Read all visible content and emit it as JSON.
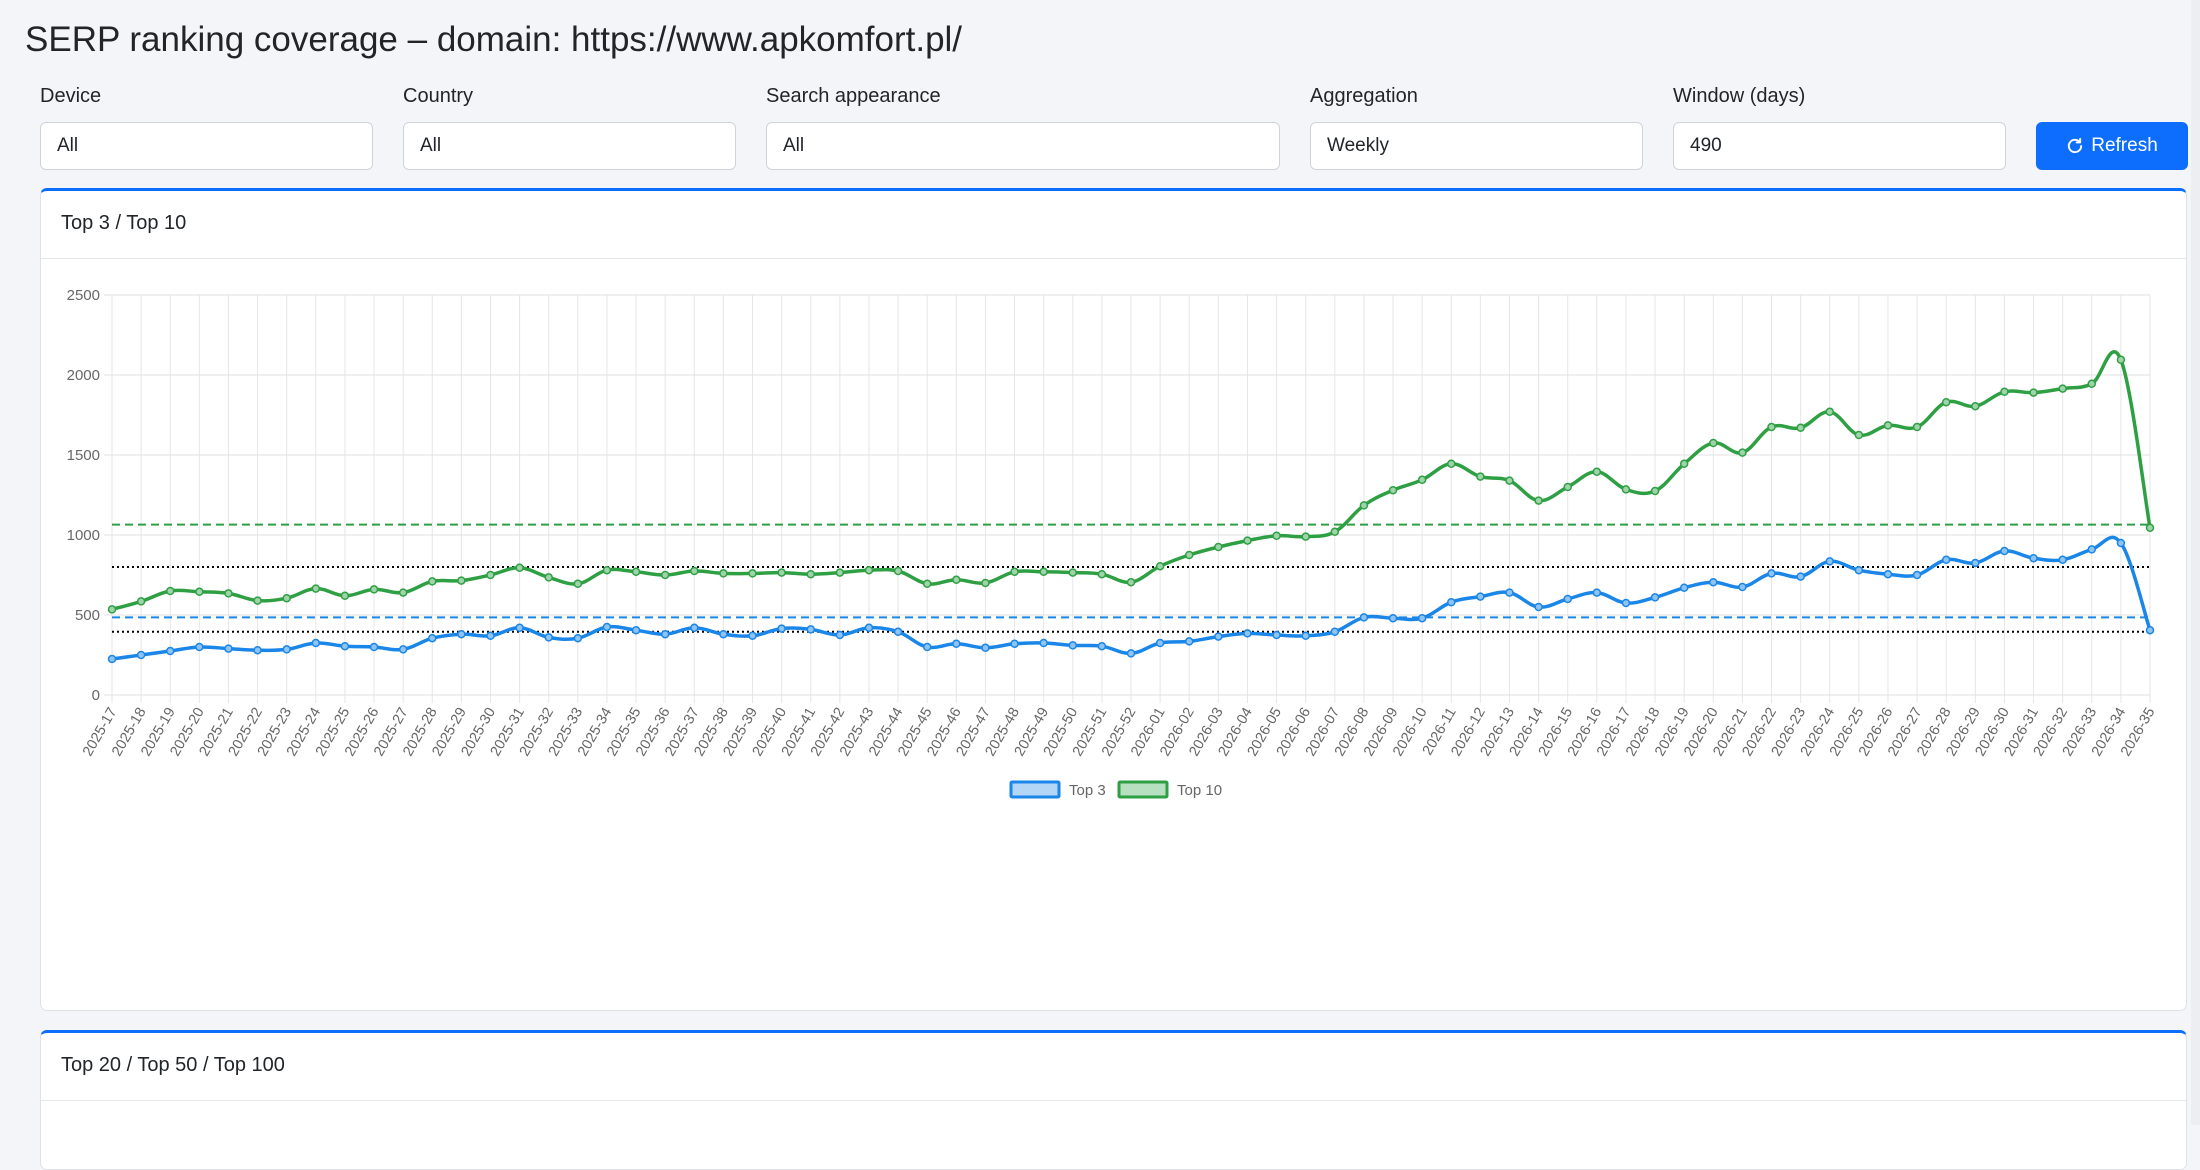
{
  "page": {
    "title": "SERP ranking coverage – domain: https://www.apkomfort.pl/"
  },
  "filters": {
    "device": {
      "label": "Device",
      "value": "All"
    },
    "country": {
      "label": "Country",
      "value": "All"
    },
    "search_appearance": {
      "label": "Search appearance",
      "value": "All"
    },
    "aggregation": {
      "label": "Aggregation",
      "value": "Weekly"
    },
    "window": {
      "label": "Window (days)",
      "value": "490"
    },
    "refresh_label": "Refresh"
  },
  "cards": {
    "top3_top10": {
      "title": "Top 3 / Top 10"
    },
    "top20_50_100": {
      "title": "Top 20 / Top 50 / Top 100"
    }
  },
  "colors": {
    "accent": "#0d6efd",
    "top3": "#1a86e8",
    "top10": "#2ea043"
  },
  "chart_data": {
    "type": "line",
    "title": "",
    "xlabel": "",
    "ylabel": "",
    "ylim": [
      0,
      2500
    ],
    "yticks": [
      0,
      500,
      1000,
      1500,
      2000,
      2500
    ],
    "grid": true,
    "legend_position": "bottom",
    "categories": [
      "2025-17",
      "2025-18",
      "2025-19",
      "2025-20",
      "2025-21",
      "2025-22",
      "2025-23",
      "2025-24",
      "2025-25",
      "2025-26",
      "2025-27",
      "2025-28",
      "2025-29",
      "2025-30",
      "2025-31",
      "2025-32",
      "2025-33",
      "2025-34",
      "2025-35",
      "2025-36",
      "2025-37",
      "2025-38",
      "2025-39",
      "2025-40",
      "2025-41",
      "2025-42",
      "2025-43",
      "2025-44",
      "2025-45",
      "2025-46",
      "2025-47",
      "2025-48",
      "2025-49",
      "2025-50",
      "2025-51",
      "2025-52",
      "2026-01",
      "2026-02",
      "2026-03",
      "2026-04",
      "2026-05",
      "2026-06",
      "2026-07",
      "2026-08",
      "2026-09",
      "2026-10",
      "2026-11",
      "2026-12",
      "2026-13",
      "2026-14",
      "2026-15",
      "2026-16",
      "2026-17",
      "2026-18",
      "2026-19",
      "2026-20",
      "2026-21",
      "2026-22",
      "2026-23",
      "2026-24",
      "2026-25",
      "2026-26",
      "2026-27",
      "2026-28",
      "2026-29",
      "2026-30",
      "2026-31",
      "2026-32",
      "2026-33",
      "2026-34",
      "2026-35"
    ],
    "series": [
      {
        "name": "Top 3",
        "color": "#1a86e8",
        "values": [
          225,
          250,
          275,
          300,
          290,
          280,
          285,
          325,
          305,
          300,
          285,
          355,
          380,
          370,
          420,
          360,
          355,
          425,
          405,
          380,
          420,
          380,
          370,
          415,
          410,
          375,
          420,
          395,
          300,
          320,
          295,
          320,
          325,
          310,
          305,
          260,
          325,
          335,
          365,
          385,
          375,
          370,
          395,
          485,
          480,
          480,
          580,
          615,
          640,
          550,
          600,
          640,
          575,
          610,
          670,
          705,
          675,
          760,
          740,
          835,
          780,
          755,
          750,
          845,
          825,
          900,
          855,
          845,
          910,
          950,
          405
        ]
      },
      {
        "name": "Top 10",
        "color": "#2ea043",
        "values": [
          535,
          585,
          650,
          645,
          635,
          590,
          605,
          665,
          620,
          660,
          640,
          710,
          715,
          750,
          795,
          735,
          695,
          780,
          770,
          750,
          775,
          760,
          760,
          765,
          755,
          765,
          780,
          775,
          695,
          720,
          700,
          770,
          770,
          765,
          755,
          705,
          805,
          875,
          925,
          965,
          995,
          990,
          1020,
          1185,
          1280,
          1345,
          1445,
          1365,
          1340,
          1215,
          1300,
          1395,
          1285,
          1275,
          1445,
          1575,
          1515,
          1675,
          1670,
          1770,
          1625,
          1685,
          1675,
          1830,
          1805,
          1895,
          1890,
          1915,
          1945,
          2095,
          1045
        ]
      }
    ],
    "reference_lines": [
      {
        "value": 1065,
        "style": "dashed",
        "color": "#2ea043"
      },
      {
        "value": 800,
        "style": "dotted",
        "color": "#000000"
      },
      {
        "value": 485,
        "style": "dashed",
        "color": "#1a86e8"
      },
      {
        "value": 395,
        "style": "dotted",
        "color": "#000000"
      }
    ]
  }
}
